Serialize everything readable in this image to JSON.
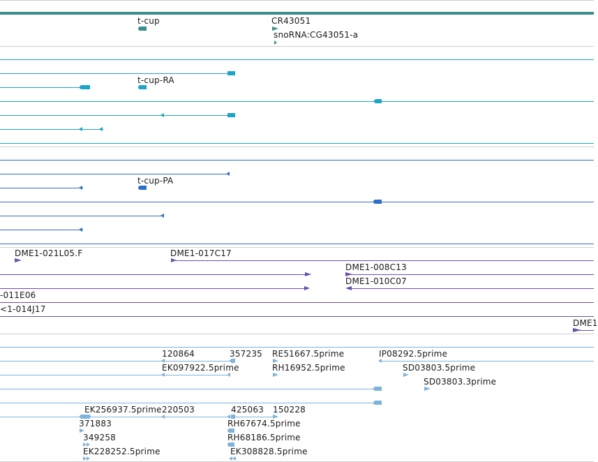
{
  "colors": {
    "gene": "#3a8f8a",
    "transcript": "#1aa6c4",
    "protein": "#2e6ec7",
    "clone": "#6b4fa8",
    "est": "#7fb3da",
    "border": "#cfcfcf"
  },
  "tracks": {
    "genes": {
      "labels": [
        "t-cup",
        "CR43051",
        "snoRNA:CG43051-a"
      ]
    },
    "transcripts": {
      "labels": [
        "t-cup-RA"
      ]
    },
    "proteins": {
      "labels": [
        "t-cup-PA"
      ]
    },
    "clones": {
      "labels": [
        "DME1-021L05.F",
        "DME1-017C17",
        "DME1-008C13",
        "DME1-010C07",
        "-011E06",
        "<1-014J17",
        "DME1"
      ]
    },
    "ests": {
      "labels": [
        "120864",
        "357235",
        "RE51667.5prime",
        "IP08292.5prime",
        "EK097922.5prime",
        "RH16952.5prime",
        "SD03803.5prime",
        "SD03803.3prime",
        "EK256937.5prime",
        "220503",
        "425063",
        "150228",
        "371883",
        "RH67674.5prime",
        "349258",
        "RH68186.5prime",
        "EK228252.5prime",
        "EK308828.5prime"
      ]
    }
  }
}
